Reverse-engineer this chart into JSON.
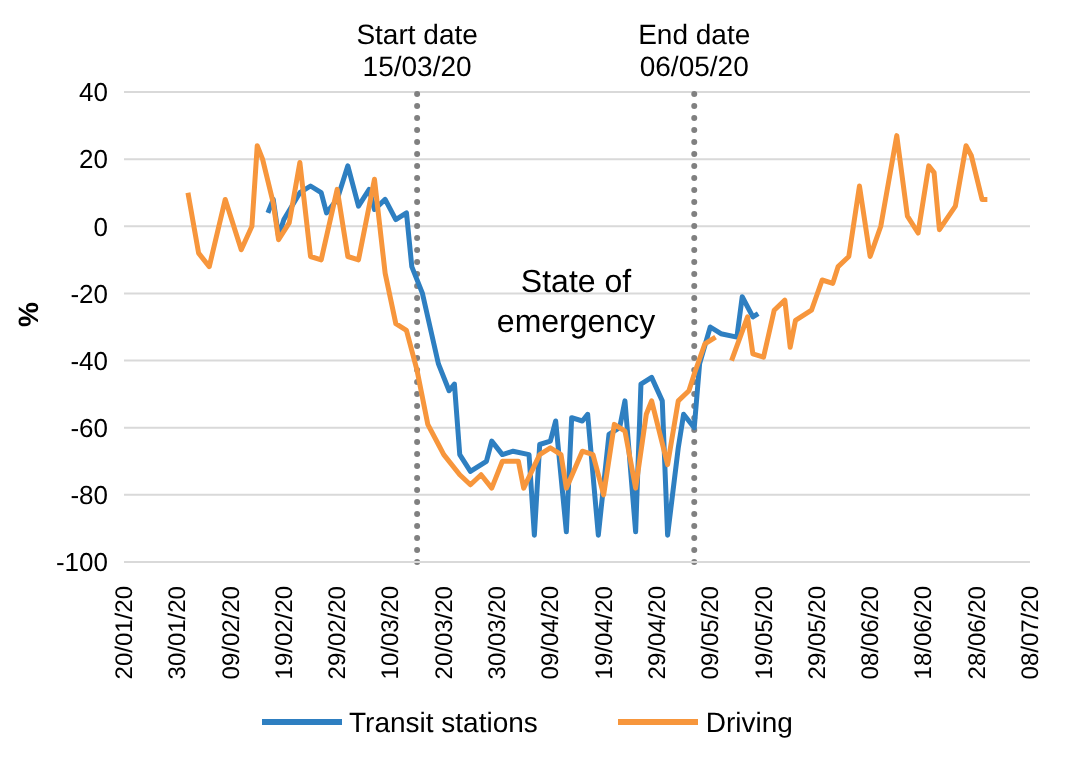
{
  "chart_data": {
    "type": "line",
    "ylabel": "%",
    "annotations": [
      "State of\nemergency"
    ],
    "xlim": [
      "--01-20",
      "--07-08"
    ],
    "xticks": [
      {
        "value": "--01-20",
        "label": "20/01/20"
      },
      {
        "value": "--01-30",
        "label": "30/01/20"
      },
      {
        "value": "--02-09",
        "label": "09/02/20"
      },
      {
        "value": "--02-19",
        "label": "19/02/20"
      },
      {
        "value": "--02-29",
        "label": "29/02/20"
      },
      {
        "value": "--03-10",
        "label": "10/03/20"
      },
      {
        "value": "--03-20",
        "label": "20/03/20"
      },
      {
        "value": "--03-30",
        "label": "30/03/20"
      },
      {
        "value": "--04-09",
        "label": "09/04/20"
      },
      {
        "value": "--04-19",
        "label": "19/04/20"
      },
      {
        "value": "--04-29",
        "label": "29/04/20"
      },
      {
        "value": "--05-09",
        "label": "09/05/20"
      },
      {
        "value": "--05-19",
        "label": "19/05/20"
      },
      {
        "value": "--05-29",
        "label": "29/05/20"
      },
      {
        "value": "--06-08",
        "label": "08/06/20"
      },
      {
        "value": "--06-18",
        "label": "18/06/20"
      },
      {
        "value": "--06-28",
        "label": "28/06/20"
      },
      {
        "value": "--07-08",
        "label": "08/07/20"
      }
    ],
    "ylim": [
      -100,
      40
    ],
    "yticks": [
      -100,
      -80,
      -60,
      -40,
      -20,
      0,
      20,
      40
    ],
    "grid": "y",
    "legend": "bottom",
    "marker": "none",
    "line_style": "solid",
    "ref_lines": [
      {
        "axis": "x",
        "value": "--03-15",
        "label": "Start date\n15/03/20",
        "color": "#808080",
        "line_style": "dotted"
      },
      {
        "axis": "x",
        "value": "--05-06",
        "label": "End date\n06/05/20",
        "color": "#808080",
        "line_style": "dotted"
      }
    ],
    "series": [
      {
        "name": "Transit stations",
        "color": "#2e7fc1",
        "x": [
          "--02-16",
          "--02-17",
          "--02-18",
          "--02-19",
          "--02-22",
          "--02-24",
          "--02-26",
          "--02-27",
          "--02-29",
          "--03-02",
          "--03-04",
          "--03-06",
          "--03-07",
          "--03-09",
          "--03-11",
          "--03-13",
          "--03-14",
          "--03-16",
          "--03-19",
          "--03-21",
          "--03-22",
          "--03-23",
          "--03-25",
          "--03-28",
          "--03-29",
          "--03-31",
          "--04-02",
          "--04-05",
          "--04-06",
          "--04-07",
          "--04-09",
          "--04-10",
          "--04-12",
          "--04-13",
          "--04-15",
          "--04-16",
          "--04-18",
          "--04-20",
          "--04-22",
          "--04-23",
          "--04-25",
          "--04-26",
          "--04-28",
          "--04-30",
          "--05-01",
          "--05-03",
          "--05-04",
          "--05-06",
          "--05-07",
          "--05-09",
          "--05-11",
          "--05-14",
          "--05-15",
          "--05-17",
          "--05-18"
        ],
        "values": [
          4,
          8,
          -3,
          2,
          10,
          12,
          10,
          4,
          8,
          18,
          6,
          11,
          5,
          8,
          2,
          4,
          -12,
          -20,
          -41,
          -49,
          -47,
          -68,
          -73,
          -70,
          -64,
          -68,
          -67,
          -68,
          -92,
          -65,
          -64,
          -58,
          -91,
          -57,
          -58,
          -56,
          -92,
          -62,
          -60,
          -52,
          -91,
          -47,
          -45,
          -52,
          -92,
          -66,
          -56,
          -60,
          -41,
          -30,
          -32,
          -33,
          -21,
          -27,
          -26
        ]
      },
      {
        "name": "Driving",
        "color": "#f7963c",
        "x": [
          "--02-01",
          "--02-03",
          "--02-05",
          "--02-08",
          "--02-11",
          "--02-13",
          "--02-14",
          "--02-15",
          "--02-17",
          "--02-18",
          "--02-20",
          "--02-22",
          "--02-24",
          "--02-26",
          "--02-29",
          "--03-02",
          "--03-04",
          "--03-07",
          "--03-09",
          "--03-11",
          "--03-13",
          "--03-15",
          "--03-17",
          "--03-19",
          "--03-20",
          "--03-23",
          "--03-25",
          "--03-27",
          "--03-29",
          "--03-31",
          "--04-03",
          "--04-04",
          "--04-07",
          "--04-09",
          "--04-11",
          "--04-12",
          "--04-15",
          "--04-17",
          "--04-19",
          "--04-21",
          "--04-23",
          "--04-25",
          "--04-27",
          "--04-28",
          "--05-01",
          "--05-03",
          "--05-05",
          "--05-06",
          "--05-08",
          "--05-10",
          "--05-11",
          "--05-13",
          "--05-16",
          "--05-17",
          "--05-19",
          "--05-21",
          "--05-23",
          "--05-24",
          "--05-25",
          "--05-28",
          "--05-30",
          "--06-01",
          "--06-02",
          "--06-04",
          "--06-06",
          "--06-08",
          "--06-10",
          "--06-13",
          "--06-15",
          "--06-17",
          "--06-19",
          "--06-20",
          "--06-21",
          "--06-24",
          "--06-26",
          "--06-27",
          "--06-29",
          "--06-30"
        ],
        "values": [
          10,
          -8,
          -12,
          8,
          -7,
          0,
          24,
          20,
          7,
          -4,
          1,
          19,
          -9,
          -10,
          11,
          -9,
          -10,
          14,
          -14,
          -29,
          -31,
          -43,
          -59,
          -65,
          -68,
          -74,
          -77,
          -74,
          -78,
          -70,
          -70,
          -78,
          -68,
          -66,
          -68,
          -78,
          -67,
          -68,
          -80,
          -59,
          -61,
          -78,
          -56,
          -52,
          -71,
          -52,
          -49,
          -44,
          -35,
          -33,
          null,
          -40,
          -27,
          -38,
          -39,
          -25,
          -22,
          -36,
          -28,
          -25,
          -16,
          -17,
          -12,
          -9,
          12,
          -9,
          0,
          27,
          3,
          -2,
          18,
          16,
          -1,
          6,
          24,
          21,
          8,
          8
        ]
      }
    ]
  }
}
